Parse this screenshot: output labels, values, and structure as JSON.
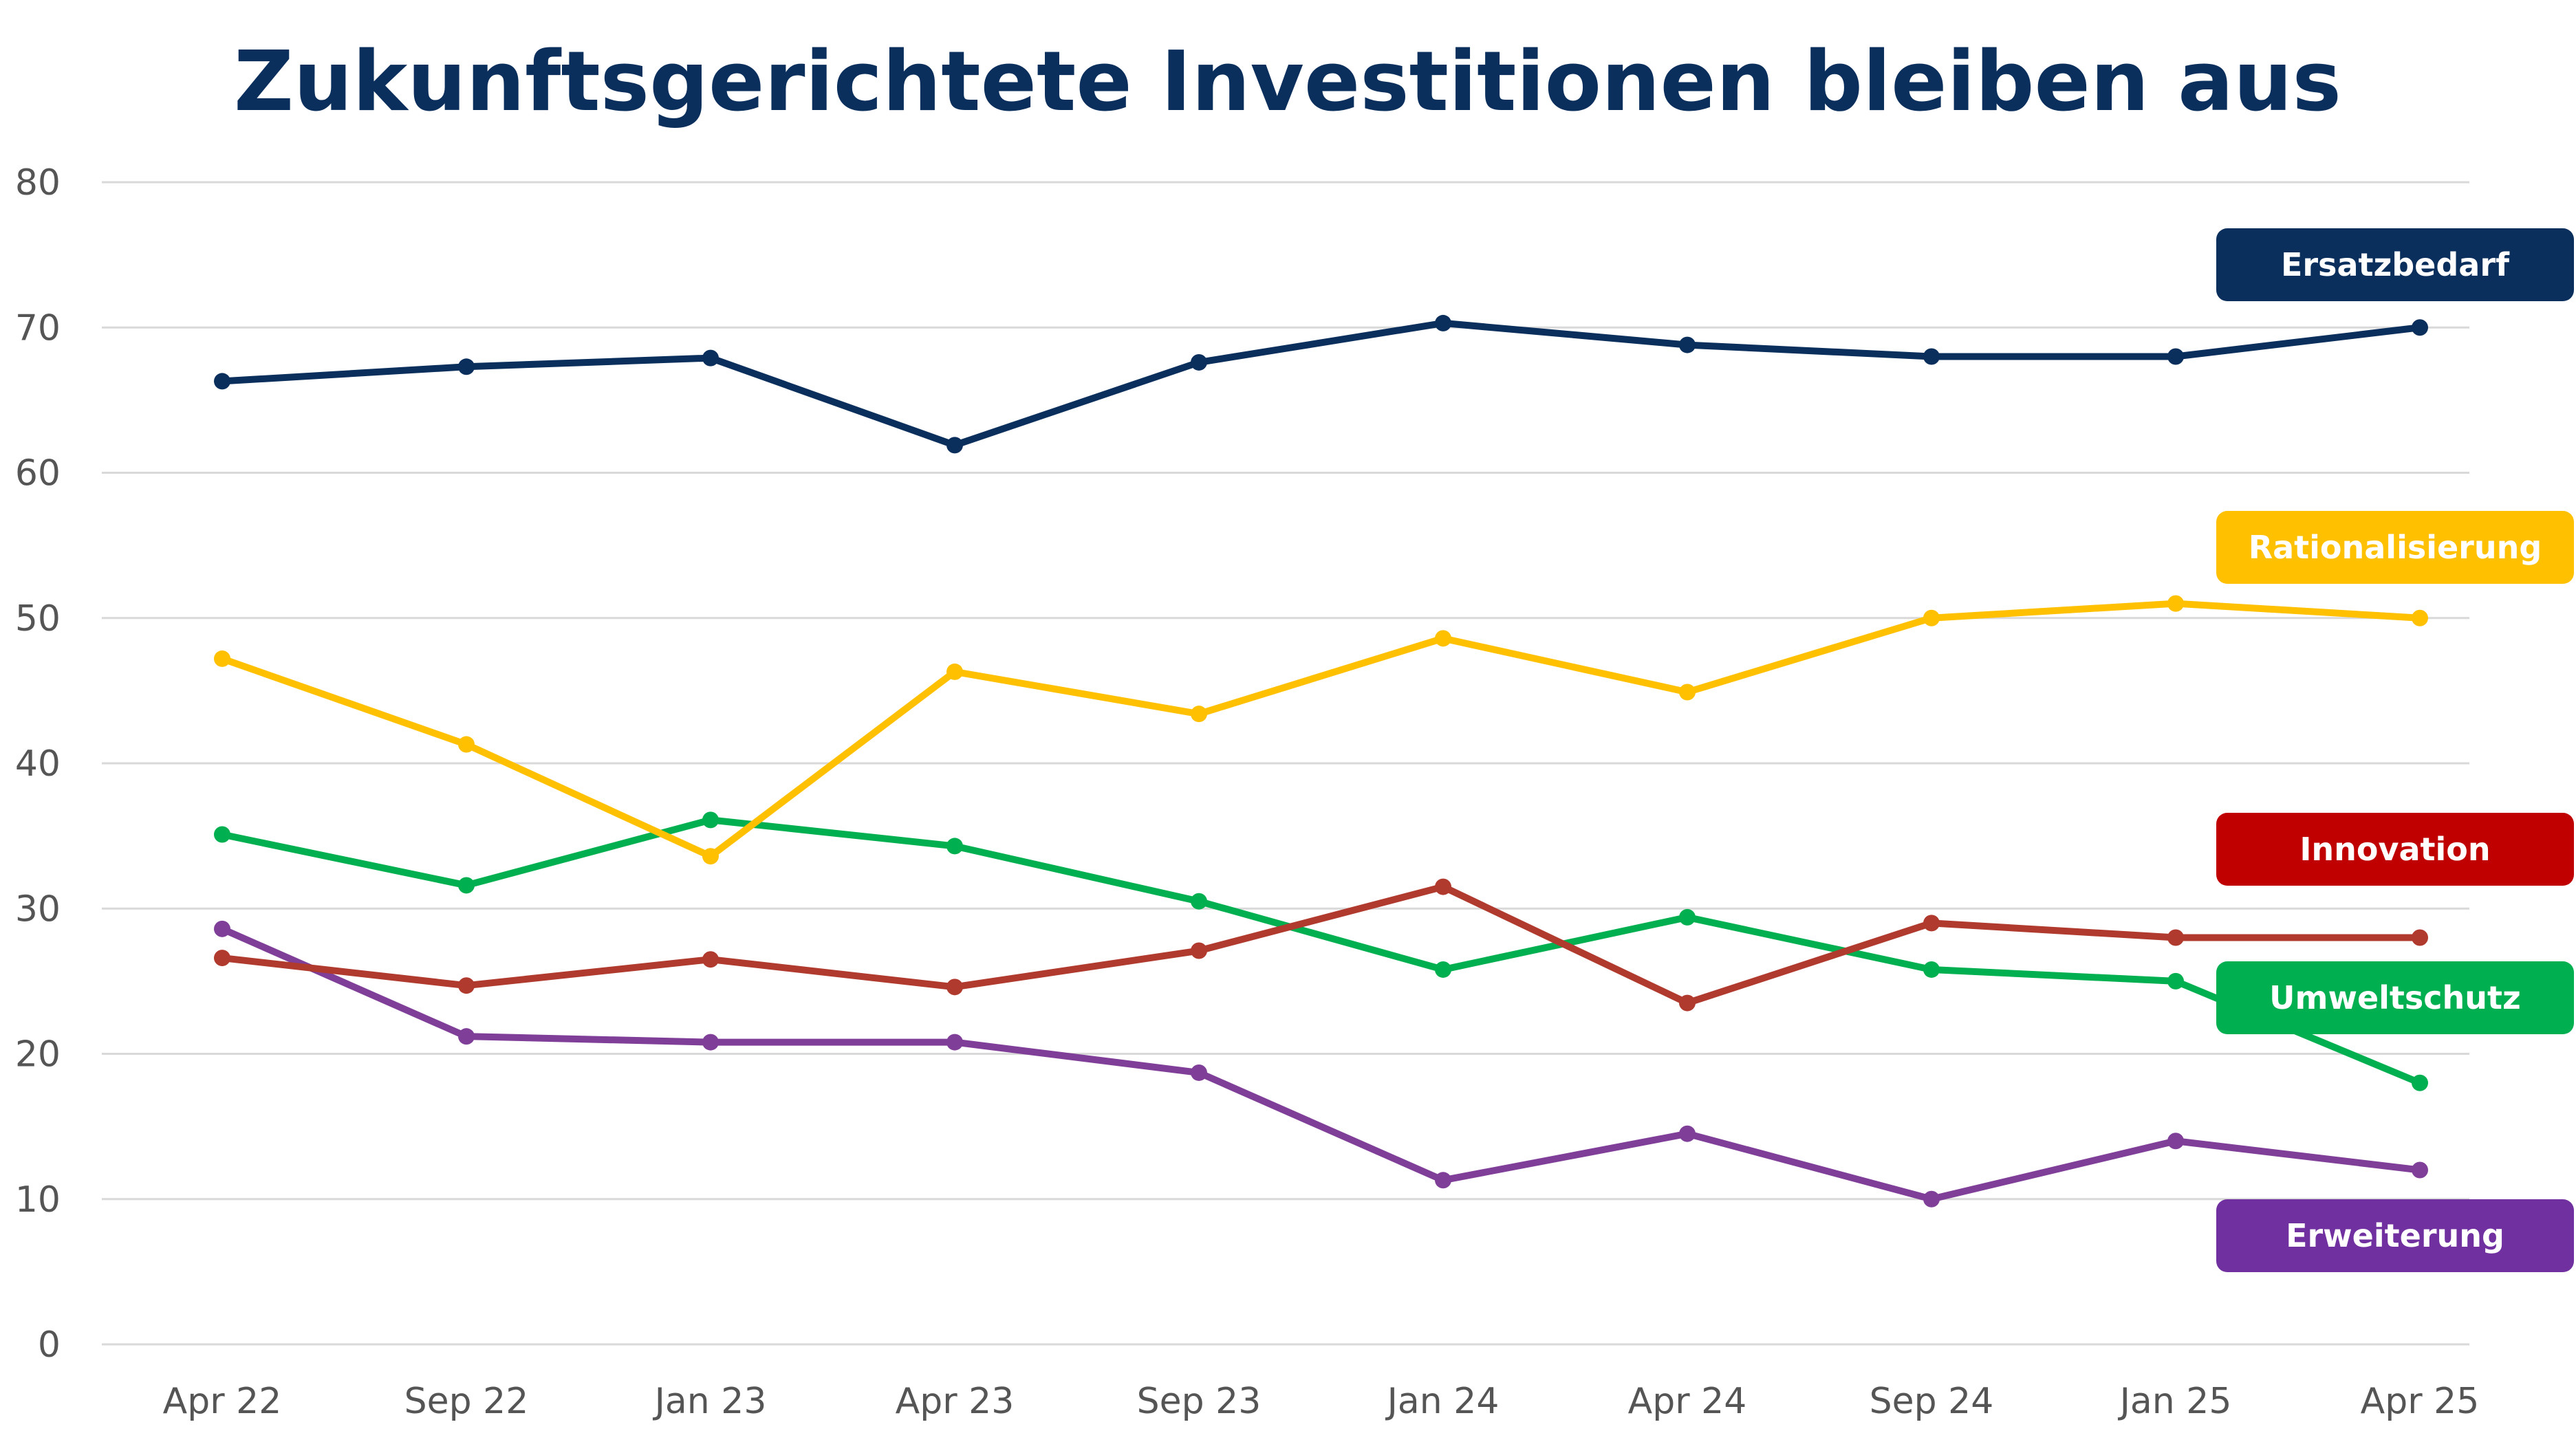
{
  "chart_data": {
    "type": "line",
    "title": "Zukunftsgerichtete Investitionen bleiben aus",
    "xlabel": "",
    "ylabel": "",
    "ylim": [
      0,
      80
    ],
    "yticks": [
      0,
      10,
      20,
      30,
      40,
      50,
      60,
      70,
      80
    ],
    "grid": true,
    "legend": "labels at right end of lines",
    "categories": [
      "Apr 22",
      "Sep 22",
      "Jan 23",
      "Apr 23",
      "Sep 23",
      "Jan 24",
      "Apr 24",
      "Sep 24",
      "Jan 25",
      "Apr 25"
    ],
    "series": [
      {
        "name": "Ersatzbedarf",
        "color": "#0b2f5c",
        "values": [
          66.3,
          67.3,
          67.9,
          61.9,
          67.6,
          70.3,
          68.8,
          68.0,
          68.0,
          70.0
        ]
      },
      {
        "name": "Rationalisierung",
        "color": "#ffc000",
        "values": [
          47.2,
          41.3,
          33.6,
          46.3,
          43.4,
          48.6,
          44.9,
          50.0,
          51.0,
          50.0
        ]
      },
      {
        "name": "Innovation",
        "color": "#b03a2e",
        "values": [
          26.6,
          24.7,
          26.5,
          24.6,
          27.1,
          31.5,
          23.5,
          29.0,
          28.0,
          28.0
        ],
        "badge_color": "#c00000"
      },
      {
        "name": "Umweltschutz",
        "color": "#00b050",
        "values": [
          35.1,
          31.6,
          36.1,
          34.3,
          30.5,
          25.8,
          29.4,
          25.8,
          25.0,
          18.0
        ]
      },
      {
        "name": "Erweiterung",
        "color": "#7f3f98",
        "values": [
          28.6,
          21.2,
          20.8,
          20.8,
          18.7,
          11.3,
          14.5,
          10.0,
          14.0,
          12.0
        ],
        "badge_color": "#7030a0"
      }
    ]
  }
}
